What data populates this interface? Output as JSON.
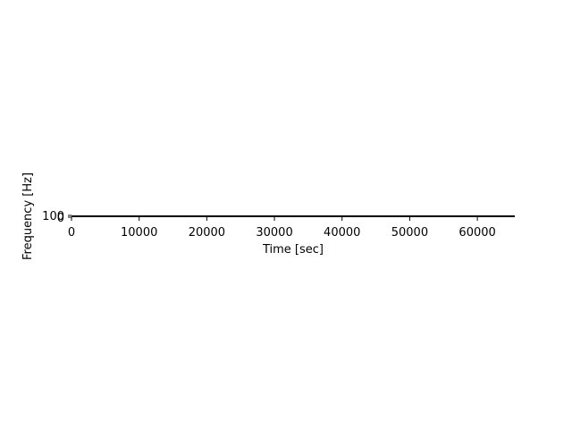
{
  "chart_data": {
    "type": "heatmap",
    "title": "",
    "xlabel": "Time [sec]",
    "ylabel": "Frequency [Hz]",
    "xlim": [
      0,
      65536
    ],
    "ylim": [
      0,
      100
    ],
    "x_ticks": [
      "0",
      "10000",
      "20000",
      "30000",
      "40000",
      "50000",
      "60000"
    ],
    "x_tick_values": [
      0,
      10000,
      20000,
      30000,
      40000,
      50000,
      60000
    ],
    "y_ticks": [
      "0",
      "100"
    ],
    "y_tick_values": [
      0,
      100
    ],
    "series": [],
    "colors": {
      "axis": "#000000",
      "text": "#000000",
      "background": "#ffffff"
    }
  }
}
